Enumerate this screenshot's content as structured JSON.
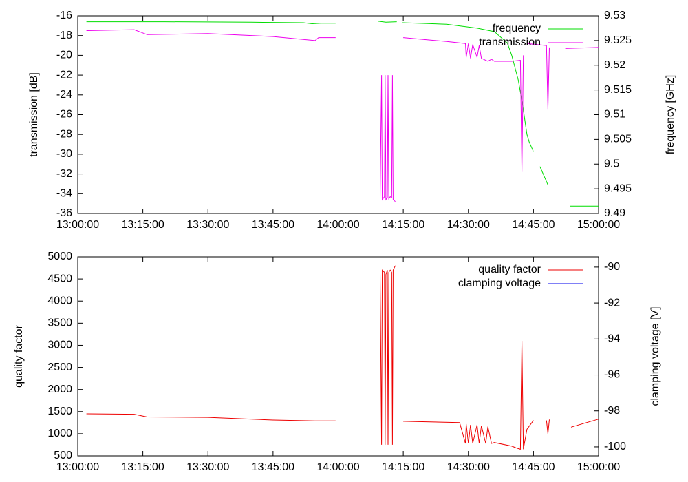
{
  "chart_data": [
    {
      "type": "line",
      "ylabel": "transmission [dB]",
      "y2label": "frequency [GHz]",
      "xlim": [
        "13:00:00",
        "15:00:00"
      ],
      "xticks": [
        "13:00:00",
        "13:15:00",
        "13:30:00",
        "13:45:00",
        "14:00:00",
        "14:15:00",
        "14:30:00",
        "14:45:00",
        "15:00:00"
      ],
      "ylim": [
        -36,
        -16
      ],
      "yticks": [
        -16,
        -18,
        -20,
        -22,
        -24,
        -26,
        -28,
        -30,
        -32,
        -34,
        -36
      ],
      "y2lim": [
        9.49,
        9.53
      ],
      "y2ticks": [
        9.53,
        9.525,
        9.52,
        9.515,
        9.51,
        9.505,
        9.5,
        9.495,
        9.49
      ],
      "legend": "upper right",
      "series": [
        {
          "name": "frequency",
          "color": "#00dd00",
          "axis": "y2",
          "x": [
            "13:02:00",
            "13:20:00",
            "13:40:00",
            "13:52:00",
            "13:54:00",
            "13:56:00",
            "13:59:25",
            "14:00:00",
            "14:09:15",
            "14:11:00",
            "14:13:30",
            "14:14:00",
            "14:14:50",
            "14:25:00",
            "14:32:00",
            "14:36:00",
            "14:39:00",
            "14:40:00",
            "14:41:30",
            "14:42:30",
            "14:43:30",
            "14:44:00",
            "14:45:00",
            "14:45:30",
            "14:46:30",
            "14:48:20",
            "14:49:00",
            "14:53:30",
            "15:00:00"
          ],
          "values": [
            9.5288,
            9.5288,
            9.5287,
            9.5286,
            9.5284,
            9.5285,
            9.5285,
            null,
            9.5289,
            9.5287,
            9.5288,
            null,
            9.5286,
            9.5283,
            9.5275,
            9.5268,
            9.5245,
            9.522,
            9.517,
            9.512,
            9.506,
            9.5045,
            9.5025,
            null,
            9.4995,
            9.4958,
            null,
            9.4915,
            9.4915
          ]
        },
        {
          "name": "transmission",
          "color": "#ee00ee",
          "axis": "y",
          "x": [
            "13:02:00",
            "13:13:00",
            "13:16:00",
            "13:30:00",
            "13:45:00",
            "13:54:40",
            "13:55:30",
            "13:59:25",
            "14:00:00",
            "14:09:40",
            "14:10:00",
            "14:10:10",
            "14:10:40",
            "14:10:50",
            "14:11:00",
            "14:11:20",
            "14:11:30",
            "14:11:40",
            "14:12:00",
            "14:12:20",
            "14:12:30",
            "14:12:40",
            "14:13:10",
            "14:13:30",
            "14:15:00",
            "14:25:00",
            "14:29:20",
            "14:29:30",
            "14:30:00",
            "14:30:30",
            "14:31:00",
            "14:32:00",
            "14:32:30",
            "14:33:00",
            "14:34:00",
            "14:34:30",
            "14:35:20",
            "14:36:00",
            "14:40:00",
            "14:42:00",
            "14:42:20",
            "14:42:40",
            "14:43:00",
            "14:43:30",
            "14:48:00",
            "14:48:20",
            "14:48:40",
            "14:49:00",
            "14:52:20",
            "15:00:00"
          ],
          "values": [
            -17.5,
            -17.4,
            -17.9,
            -17.8,
            -18.1,
            -18.5,
            -18.2,
            -18.2,
            null,
            -34.5,
            -22,
            -34.6,
            -34.3,
            -22,
            -34.6,
            -34.4,
            -22,
            -34.5,
            -34.3,
            -34.4,
            -22,
            -34.6,
            -34.8,
            null,
            -18.2,
            -18.6,
            -18.8,
            -20.2,
            -18.8,
            -20.3,
            -18.9,
            -20.2,
            -19.0,
            -20.3,
            -20.5,
            -20.6,
            -20.4,
            -20.6,
            -20.6,
            -20.5,
            -31.8,
            -20.0,
            null,
            -18.8,
            -19.0,
            -25.5,
            -19.2,
            null,
            -19.3,
            -19.2
          ]
        }
      ]
    },
    {
      "type": "line",
      "ylabel": "quality factor",
      "y2label": "clamping voltage [V]",
      "xlim": [
        "13:00:00",
        "15:00:00"
      ],
      "xticks": [
        "13:00:00",
        "13:15:00",
        "13:30:00",
        "13:45:00",
        "14:00:00",
        "14:15:00",
        "14:30:00",
        "14:45:00",
        "15:00:00"
      ],
      "ylim": [
        500,
        5000
      ],
      "yticks": [
        500,
        1000,
        1500,
        2000,
        2500,
        3000,
        3500,
        4000,
        4500,
        5000
      ],
      "y2lim": [
        -100.5,
        -89.43
      ],
      "y2ticks": [
        -90,
        -92,
        -94,
        -96,
        -98,
        -100
      ],
      "legend": "upper right",
      "series": [
        {
          "name": "quality factor",
          "color": "#ee0000",
          "axis": "y",
          "x": [
            "13:02:00",
            "13:13:00",
            "13:16:00",
            "13:30:00",
            "13:45:00",
            "13:54:40",
            "13:59:25",
            "14:00:00",
            "14:09:40",
            "14:10:00",
            "14:10:10",
            "14:10:40",
            "14:10:50",
            "14:11:00",
            "14:11:20",
            "14:11:30",
            "14:11:40",
            "14:12:00",
            "14:12:20",
            "14:12:30",
            "14:12:40",
            "14:13:10",
            "14:13:30",
            "14:15:00",
            "14:28:00",
            "14:29:20",
            "14:29:30",
            "14:30:00",
            "14:30:30",
            "14:31:00",
            "14:32:00",
            "14:32:30",
            "14:33:00",
            "14:34:00",
            "14:34:30",
            "14:35:20",
            "14:36:00",
            "14:40:00",
            "14:41:00",
            "14:42:00",
            "14:42:20",
            "14:42:40",
            "14:43:30",
            "14:45:00",
            "14:46:00",
            "14:48:00",
            "14:48:20",
            "14:48:40",
            "14:53:00",
            "14:53:40",
            "15:00:00"
          ],
          "values": [
            1450,
            1440,
            1380,
            1370,
            1310,
            1290,
            1290,
            null,
            4650,
            750,
            4700,
            4650,
            750,
            4600,
            4700,
            750,
            4650,
            4700,
            4650,
            750,
            4700,
            4800,
            null,
            1280,
            1250,
            780,
            1220,
            780,
            1200,
            780,
            1200,
            780,
            1180,
            780,
            1160,
            780,
            800,
            720,
            680,
            650,
            3100,
            650,
            1100,
            1300,
            null,
            1300,
            1000,
            1320,
            null,
            1150,
            1330
          ]
        },
        {
          "name": "clamping voltage",
          "color": "#0000ee",
          "axis": "y2",
          "x": [
            "13:00:00",
            "15:00:00"
          ],
          "values": [
            null,
            null
          ]
        }
      ]
    }
  ]
}
